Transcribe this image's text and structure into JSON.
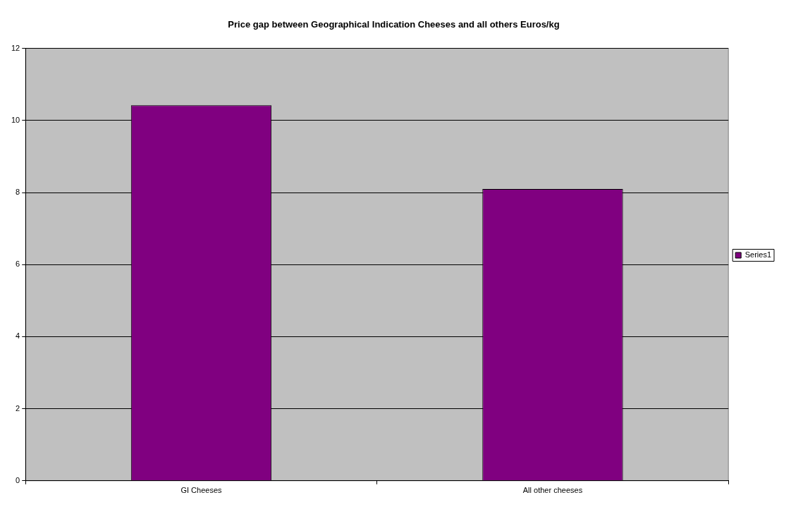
{
  "chart_data": {
    "type": "bar",
    "title": "Price gap between Geographical Indication Cheeses and all others Euros/kg",
    "categories": [
      "GI Cheeses",
      "All other cheeses"
    ],
    "series": [
      {
        "name": "Series1",
        "color": "#800080",
        "values": [
          10.42,
          8.1
        ]
      }
    ],
    "ylim": [
      0,
      12
    ],
    "yticks": [
      0,
      2,
      4,
      6,
      8,
      10,
      12
    ],
    "grid": "y",
    "legend": "right"
  }
}
